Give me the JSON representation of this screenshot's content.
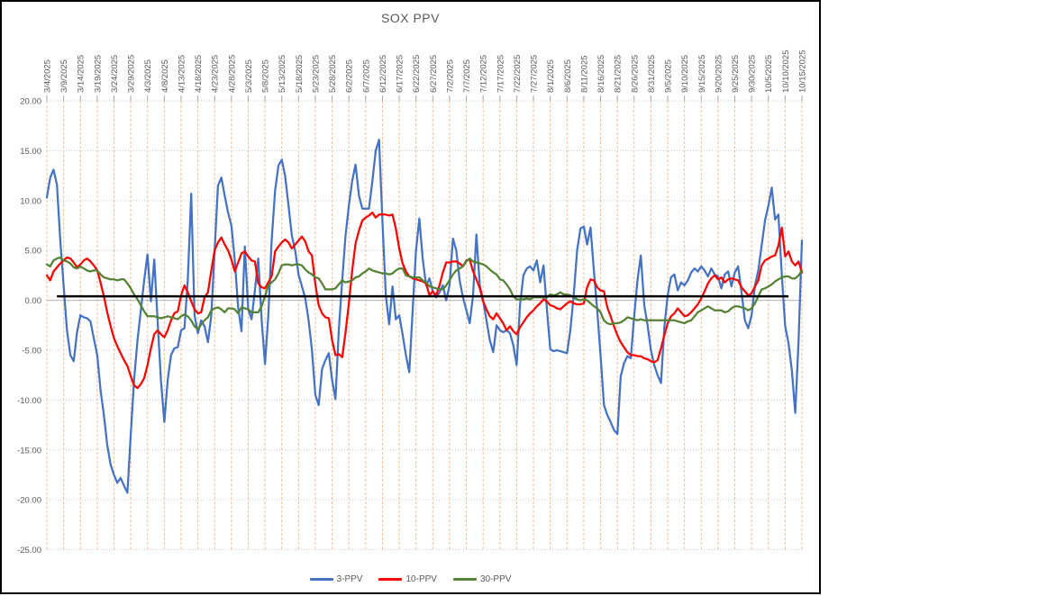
{
  "chart_data": {
    "type": "line",
    "title": "SOX PPV",
    "legend_position": "bottom",
    "axis_text_color": "#595959",
    "grid": {
      "vertical_color": "#f3bd94",
      "horizontal_color": "#c9c9c9",
      "zero_line_color": "#b3b3b3"
    },
    "ylim": [
      -25,
      20
    ],
    "y_ticks": [
      20,
      15,
      10,
      5,
      0,
      -5,
      -10,
      -15,
      -20,
      -25
    ],
    "y_tick_labels": [
      "20.00",
      "15.00",
      "10.00",
      "5.00",
      "0.00",
      "-5.00",
      "-10.00",
      "-15.00",
      "-20.00",
      "-25.00"
    ],
    "x_tick_interval_days": 5,
    "x_tick_labels": [
      "3/4/2025",
      "3/9/2025",
      "3/14/2025",
      "3/19/2025",
      "3/24/2025",
      "3/29/2025",
      "4/3/2025",
      "4/8/2025",
      "4/13/2025",
      "4/18/2025",
      "4/23/2025",
      "4/28/2025",
      "5/3/2025",
      "5/8/2025",
      "5/13/2025",
      "5/18/2025",
      "5/23/2025",
      "5/28/2025",
      "6/2/2025",
      "6/7/2025",
      "6/12/2025",
      "6/17/2025",
      "6/22/2025",
      "6/27/2025",
      "7/2/2025",
      "7/7/2025",
      "7/12/2025",
      "7/17/2025",
      "7/22/2025",
      "7/27/2025",
      "8/1/2025",
      "8/6/2025",
      "8/11/2025",
      "8/16/2025",
      "8/21/2025",
      "8/26/2025",
      "8/31/2025",
      "9/5/2025",
      "9/10/2025",
      "9/15/2025",
      "9/20/2025",
      "9/25/2025",
      "9/30/2025",
      "10/5/2025",
      "10/10/2025",
      "10/15/2025"
    ],
    "annotation_line": {
      "description": "horizontal black reference line",
      "value": 0.4,
      "from_day": 3,
      "to_day": 221,
      "color": "#000000"
    },
    "series": [
      {
        "name": "3-PPV",
        "color": "#4472C4",
        "values": [
          10.3,
          12.3,
          13.1,
          11.6,
          6,
          1.5,
          -3,
          -5.5,
          -6.1,
          -3.2,
          -1.5,
          -1.7,
          -1.8,
          -2.1,
          -3.8,
          -5.5,
          -9,
          -11.5,
          -14.5,
          -16.5,
          -17.5,
          -18.3,
          -17.8,
          -18.6,
          -19.3,
          -13.5,
          -8,
          -4,
          -1,
          2,
          4.6,
          -0.1,
          4.1,
          -2,
          -8,
          -12.2,
          -8,
          -5.5,
          -4.8,
          -4.7,
          -3,
          -2.8,
          2,
          10.7,
          -1.5,
          -3.3,
          -2,
          -2.6,
          -4.2,
          -1.5,
          5,
          11.5,
          12.3,
          10.5,
          8.8,
          7.5,
          4,
          -0.7,
          -3.1,
          5.4,
          -0.9,
          -1.9,
          1,
          4.2,
          -2,
          -6.4,
          -1.5,
          6,
          11,
          13.5,
          14.1,
          12.5,
          9.5,
          6.5,
          5,
          2.6,
          1.4,
          0.2,
          -2,
          -5,
          -9.5,
          -10.5,
          -6.9,
          -6,
          -5.3,
          -8,
          -9.9,
          -3,
          2,
          6.5,
          9.5,
          12,
          13.6,
          10.5,
          9.2,
          9.2,
          9.2,
          12,
          15,
          16.1,
          8,
          0.5,
          -2.4,
          1.4,
          -1.9,
          -1.5,
          -3.4,
          -5.5,
          -7.2,
          -1,
          5,
          8.2,
          4.2,
          1.5,
          2.2,
          0.9,
          0.3,
          0.8,
          1.5,
          0,
          1.5,
          6.2,
          5,
          2,
          0.3,
          -1,
          -2.3,
          0.5,
          6.6,
          1.5,
          0,
          -2,
          -4,
          -5.2,
          -2.5,
          -3,
          -3.2,
          -3,
          -3.3,
          -4.5,
          -6.5,
          -0.5,
          2.5,
          3.2,
          3.4,
          3,
          4,
          1.8,
          3.5,
          -0.8,
          -4.9,
          -5.1,
          -5,
          -5.1,
          -5.2,
          -5.3,
          -3,
          0.5,
          5,
          7.2,
          7.4,
          5.6,
          7.3,
          3,
          -1,
          -5.5,
          -10.5,
          -11.5,
          -12.2,
          -13,
          -13.4,
          -7.6,
          -6.3,
          -5.6,
          -5.8,
          -1.6,
          2,
          4.5,
          -0.5,
          -2.5,
          -5,
          -6.5,
          -7.5,
          -8.3,
          -2.7,
          0.5,
          2.3,
          2.6,
          1,
          1.8,
          1.5,
          2,
          2.8,
          3.2,
          2.9,
          3.4,
          3,
          2.4,
          3.2,
          2.6,
          2.4,
          1.2,
          2.6,
          2.9,
          1.4,
          2.8,
          3.4,
          0.8,
          -2,
          -2.8,
          -1.5,
          1.5,
          3,
          5.5,
          8,
          9.5,
          11.3,
          8.1,
          8.6,
          2.5,
          -2.6,
          -4.3,
          -7,
          -11.3,
          -4,
          6
        ]
      },
      {
        "name": "10-PPV",
        "color": "#FF0000",
        "values": [
          2.5,
          2,
          2.9,
          3.3,
          3.7,
          4,
          4.3,
          4.2,
          3.8,
          3.3,
          3.6,
          4,
          4.2,
          3.9,
          3.5,
          3,
          1.8,
          0.4,
          -1.2,
          -2.6,
          -3.8,
          -4.6,
          -5.3,
          -6,
          -6.6,
          -7.6,
          -8.5,
          -8.8,
          -8.4,
          -7.8,
          -6.5,
          -4.8,
          -3.4,
          -3,
          -3.4,
          -3.7,
          -3,
          -2,
          -1.3,
          -1.1,
          0.5,
          1.5,
          0.8,
          -0.1,
          -0.9,
          -1.3,
          -1.2,
          0.3,
          0.8,
          3,
          5,
          5.8,
          6.3,
          5.6,
          5,
          4.1,
          2.9,
          3.8,
          4.7,
          4.9,
          4.4,
          4,
          3.9,
          1.7,
          1.3,
          1.2,
          1.8,
          2.4,
          4.9,
          5.4,
          5.8,
          6.1,
          5.8,
          5.2,
          5.6,
          6,
          6.4,
          5.9,
          4.9,
          4.5,
          1.6,
          -0.5,
          -1.3,
          -1.7,
          -1.8,
          -4,
          -5.5,
          -5.4,
          -5.7,
          -3.2,
          -0.3,
          3,
          5.7,
          7,
          8,
          8.3,
          8.5,
          8.8,
          8.3,
          8.6,
          8.6,
          8.6,
          8.5,
          8.6,
          7.2,
          5.2,
          3.7,
          2.9,
          2.4,
          2.2,
          2.1,
          2,
          1.9,
          1.7,
          0.5,
          0.9,
          0.5,
          1.5,
          2.8,
          3.8,
          3.8,
          3.9,
          3.9,
          3.7,
          3.4,
          4,
          4.1,
          2.9,
          2.1,
          1.2,
          -0.1,
          -0.9,
          -1.6,
          -1.9,
          -1.3,
          -1.8,
          -2.3,
          -3,
          -2.6,
          -3.1,
          -3.4,
          -2.7,
          -2.2,
          -1.7,
          -1.3,
          -1,
          -0.6,
          -0.3,
          0.1,
          -0.1,
          -0.5,
          -0.6,
          -0.8,
          -0.9,
          -0.6,
          -0.3,
          -0.1,
          -0.3,
          -0.4,
          -0.4,
          -0.3,
          1.3,
          2.1,
          2,
          1.3,
          1,
          0.9,
          -0.7,
          -1.6,
          -2.6,
          -3.5,
          -4.2,
          -4.7,
          -5.2,
          -5.5,
          -5.5,
          -5.6,
          -5.6,
          -5.8,
          -5.9,
          -6.1,
          -6.2,
          -6,
          -4.8,
          -3.5,
          -2.3,
          -1.6,
          -1.3,
          -0.8,
          -1.2,
          -1.6,
          -1.5,
          -1.2,
          -0.8,
          -0.4,
          0.2,
          0.9,
          1.7,
          2.2,
          2.5,
          2.1,
          2.3,
          1.8,
          2.1,
          2.2,
          2.1,
          2,
          1.3,
          0.9,
          0.5,
          0.7,
          1.4,
          2,
          3.5,
          4,
          4.2,
          4.4,
          4.5,
          5.5,
          7.3,
          4.4,
          4.9,
          3.9,
          3.5,
          3.9,
          2.8
        ]
      },
      {
        "name": "30-PPV",
        "color": "#548235",
        "values": [
          3.6,
          3.4,
          4,
          4.2,
          4.3,
          4,
          3.9,
          3.7,
          3.3,
          3.2,
          3.4,
          3.2,
          3,
          2.9,
          3,
          3,
          2.6,
          2.3,
          2.2,
          2.1,
          2.1,
          2,
          2.1,
          2.1,
          1.7,
          1.2,
          0.6,
          0.1,
          -0.5,
          -1.1,
          -1.6,
          -1.6,
          -1.6,
          -1.7,
          -1.8,
          -1.7,
          -1.6,
          -1.7,
          -1.8,
          -1.9,
          -1.6,
          -1.4,
          -1.6,
          -2,
          -2.6,
          -2.9,
          -2.4,
          -2,
          -1.7,
          -1,
          -0.8,
          -0.7,
          -0.9,
          -1.2,
          -0.8,
          -0.8,
          -0.9,
          -1.3,
          -0.7,
          -0.8,
          -0.9,
          -1.2,
          -1.2,
          -1.2,
          -0.6,
          0.4,
          1.5,
          1.8,
          2.1,
          2.7,
          3.5,
          3.6,
          3.6,
          3.5,
          3.6,
          3.6,
          3.5,
          3.1,
          2.8,
          2.6,
          2.3,
          2.2,
          1.7,
          1.1,
          1.1,
          1.1,
          1.2,
          1.6,
          2,
          1.8,
          1.9,
          2,
          2.3,
          2.4,
          2.7,
          2.9,
          3.2,
          3,
          2.9,
          2.8,
          2.7,
          2.7,
          2.6,
          2.7,
          3,
          3.2,
          3.2,
          2.5,
          2.4,
          2.3,
          2.3,
          2.3,
          2,
          1.8,
          1.4,
          1.3,
          1.2,
          1.1,
          1.1,
          1.5,
          2,
          2.6,
          3,
          3.2,
          3.4,
          3.9,
          4.2,
          3.9,
          3.8,
          3.7,
          3.6,
          3.4,
          3.1,
          2.8,
          2.6,
          2.1,
          2,
          1.6,
          1.1,
          0.4,
          0.1,
          0.1,
          0.1,
          0.2,
          0.1,
          0.3,
          0.3,
          0.3,
          0.3,
          0.3,
          0.6,
          0.5,
          0.6,
          0.8,
          0.6,
          0.6,
          0.5,
          0.3,
          0.1,
          0,
          0.1,
          0,
          -0.3,
          -0.6,
          -0.8,
          -1.2,
          -2,
          -2.3,
          -2.4,
          -2.3,
          -2.3,
          -2.2,
          -2,
          -1.7,
          -1.8,
          -1.9,
          -2,
          -1.9,
          -2,
          -2,
          -2,
          -2,
          -2,
          -2,
          -2,
          -2,
          -2,
          -2,
          -2.1,
          -2.2,
          -2.3,
          -2.1,
          -2,
          -1.6,
          -1.2,
          -1,
          -0.8,
          -0.6,
          -0.8,
          -1,
          -1,
          -1,
          -1.2,
          -1.1,
          -0.8,
          -0.6,
          -0.6,
          -0.7,
          -0.8,
          -1,
          -0.8,
          -0.3,
          0.4,
          1.1,
          1.2,
          1.4,
          1.6,
          1.9,
          2.1,
          2.3,
          2.4,
          2.4,
          2.2,
          2.2,
          2.5,
          3
        ]
      }
    ]
  }
}
